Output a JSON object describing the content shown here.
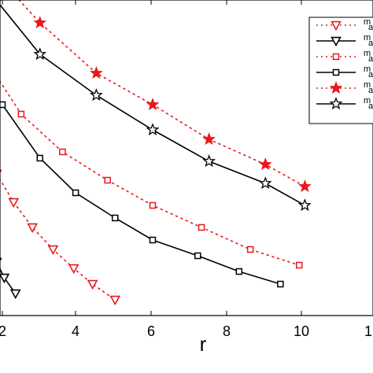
{
  "chart_data": {
    "type": "line",
    "title": "",
    "xlabel": "r",
    "ylabel": "",
    "xlim": [
      1.85,
      10.05
    ],
    "ylim": [
      0,
      1
    ],
    "x_ticks": [
      "2",
      "4",
      "6",
      "8",
      "10",
      "1"
    ],
    "grid": false,
    "legend_position": "top-right",
    "legend_entries": [
      "m a",
      "m a",
      "m a",
      "m a",
      "m a",
      "m a"
    ],
    "colors": {
      "red": "#e8191c",
      "black": "#000000"
    },
    "series": [
      {
        "color": "#e8191c",
        "style": "dotted",
        "marker": "triangle-down",
        "x": [
          1.85,
          2.3,
          2.8,
          3.35,
          3.9,
          4.4,
          5.0
        ],
        "y": [
          0.45,
          0.36,
          0.28,
          0.21,
          0.15,
          0.1,
          0.05
        ]
      },
      {
        "color": "#000000",
        "style": "solid",
        "marker": "triangle-down",
        "x": [
          1.85,
          2.05,
          2.35
        ],
        "y": [
          0.17,
          0.12,
          0.07
        ]
      },
      {
        "color": "#e8191c",
        "style": "dotted",
        "marker": "square",
        "x": [
          1.85,
          2.5,
          3.6,
          4.8,
          6.0,
          7.3,
          8.6,
          9.9
        ],
        "y": [
          0.76,
          0.64,
          0.52,
          0.43,
          0.35,
          0.28,
          0.21,
          0.16
        ]
      },
      {
        "color": "#000000",
        "style": "solid",
        "marker": "square",
        "x": [
          1.85,
          2.0,
          3.0,
          3.95,
          5.0,
          6.0,
          7.2,
          8.3,
          9.4
        ],
        "y": [
          0.68,
          0.67,
          0.5,
          0.39,
          0.31,
          0.24,
          0.19,
          0.14,
          0.1
        ]
      },
      {
        "color": "#e8191c",
        "style": "dotted",
        "marker": "star",
        "x": [
          1.85,
          3.0,
          4.5,
          6.0,
          7.5,
          9.0,
          10.05
        ],
        "y": [
          1.08,
          0.93,
          0.77,
          0.67,
          0.56,
          0.48,
          0.41
        ]
      },
      {
        "color": "#000000",
        "style": "solid",
        "marker": "star",
        "x": [
          1.85,
          3.0,
          4.5,
          6.0,
          7.5,
          9.0,
          10.05
        ],
        "y": [
          1.0,
          0.83,
          0.7,
          0.59,
          0.49,
          0.42,
          0.35
        ]
      }
    ]
  }
}
